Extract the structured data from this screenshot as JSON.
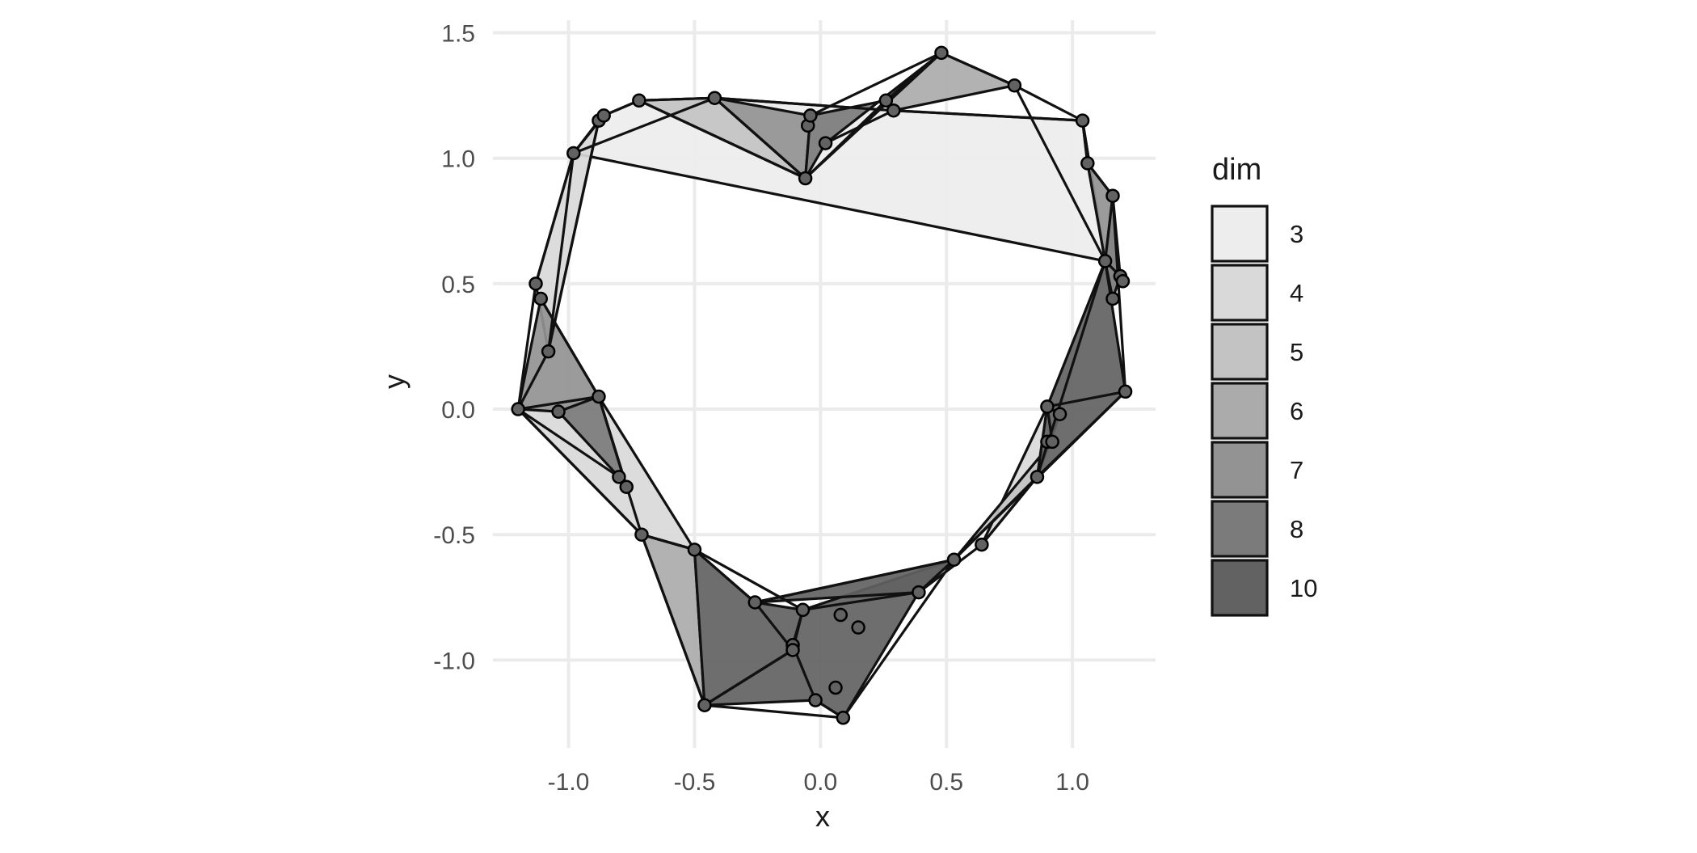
{
  "chart_data": {
    "type": "scatter",
    "xlabel": "x",
    "ylabel": "y",
    "xlim": [
      -1.3,
      1.33
    ],
    "ylim": [
      -1.35,
      1.55
    ],
    "x_ticks": [
      -1.0,
      -0.5,
      0.0,
      0.5,
      1.0
    ],
    "x_tick_labels": [
      "-1.0",
      "-0.5",
      "0.0",
      "0.5",
      "1.0"
    ],
    "y_ticks": [
      -1.0,
      -0.5,
      0.0,
      0.5,
      1.0,
      1.5
    ],
    "y_tick_labels": [
      "-1.0",
      "-0.5",
      "0.0",
      "0.5",
      "1.0",
      "1.5"
    ],
    "grid": true,
    "legend": {
      "title": "dim",
      "placement": "right",
      "entries": [
        {
          "label": "3",
          "color": "#ededed"
        },
        {
          "label": "4",
          "color": "#d9d9d9"
        },
        {
          "label": "5",
          "color": "#c3c3c3"
        },
        {
          "label": "6",
          "color": "#ababab"
        },
        {
          "label": "7",
          "color": "#939393"
        },
        {
          "label": "8",
          "color": "#7b7b7b"
        },
        {
          "label": "10",
          "color": "#626262"
        }
      ]
    },
    "points": [
      {
        "x": -1.2,
        "y": 0.0
      },
      {
        "x": -1.04,
        "y": -0.01
      },
      {
        "x": -0.88,
        "y": 0.05
      },
      {
        "x": -1.13,
        "y": 0.5
      },
      {
        "x": -1.11,
        "y": 0.44
      },
      {
        "x": -1.08,
        "y": 0.23
      },
      {
        "x": -0.98,
        "y": 1.02
      },
      {
        "x": -0.88,
        "y": 1.15
      },
      {
        "x": -0.86,
        "y": 1.17
      },
      {
        "x": -0.72,
        "y": 1.23
      },
      {
        "x": -0.42,
        "y": 1.24
      },
      {
        "x": -0.06,
        "y": 0.92
      },
      {
        "x": -0.05,
        "y": 1.13
      },
      {
        "x": -0.04,
        "y": 1.17
      },
      {
        "x": 0.02,
        "y": 1.06
      },
      {
        "x": 0.26,
        "y": 1.23
      },
      {
        "x": 0.29,
        "y": 1.19
      },
      {
        "x": 0.48,
        "y": 1.42
      },
      {
        "x": 0.77,
        "y": 1.29
      },
      {
        "x": 1.04,
        "y": 1.15
      },
      {
        "x": 1.06,
        "y": 0.98
      },
      {
        "x": 1.16,
        "y": 0.85
      },
      {
        "x": 1.13,
        "y": 0.59
      },
      {
        "x": 1.19,
        "y": 0.53
      },
      {
        "x": 1.2,
        "y": 0.51
      },
      {
        "x": 1.16,
        "y": 0.44
      },
      {
        "x": 1.21,
        "y": 0.07
      },
      {
        "x": 0.9,
        "y": 0.01
      },
      {
        "x": 0.95,
        "y": -0.02
      },
      {
        "x": 0.9,
        "y": -0.13
      },
      {
        "x": 0.92,
        "y": -0.13
      },
      {
        "x": 0.86,
        "y": -0.27
      },
      {
        "x": 0.64,
        "y": -0.54
      },
      {
        "x": 0.53,
        "y": -0.6
      },
      {
        "x": 0.39,
        "y": -0.73
      },
      {
        "x": 0.08,
        "y": -0.82
      },
      {
        "x": 0.15,
        "y": -0.87
      },
      {
        "x": -0.07,
        "y": -0.8
      },
      {
        "x": -0.11,
        "y": -0.94
      },
      {
        "x": -0.11,
        "y": -0.96
      },
      {
        "x": 0.06,
        "y": -1.11
      },
      {
        "x": -0.02,
        "y": -1.16
      },
      {
        "x": 0.09,
        "y": -1.23
      },
      {
        "x": -0.46,
        "y": -1.18
      },
      {
        "x": -0.26,
        "y": -0.77
      },
      {
        "x": -0.5,
        "y": -0.56
      },
      {
        "x": -0.71,
        "y": -0.5
      },
      {
        "x": -0.77,
        "y": -0.31
      },
      {
        "x": -0.8,
        "y": -0.27
      }
    ],
    "polygons": [
      {
        "dim": "3",
        "vertices": [
          [
            -0.98,
            1.02
          ],
          [
            -0.86,
            1.17
          ],
          [
            -0.72,
            1.23
          ],
          [
            -0.42,
            1.24
          ],
          [
            0.29,
            1.19
          ],
          [
            1.04,
            1.15
          ],
          [
            1.13,
            0.59
          ]
        ]
      },
      {
        "dim": "4",
        "vertices": [
          [
            -1.13,
            0.5
          ],
          [
            -0.98,
            1.02
          ],
          [
            -0.88,
            1.15
          ],
          [
            -1.08,
            0.23
          ]
        ]
      },
      {
        "dim": "4",
        "vertices": [
          [
            -1.2,
            0.0
          ],
          [
            -0.71,
            -0.5
          ],
          [
            -0.5,
            -0.56
          ],
          [
            -0.88,
            0.05
          ]
        ]
      },
      {
        "dim": "4",
        "vertices": [
          [
            0.64,
            -0.54
          ],
          [
            0.86,
            -0.27
          ],
          [
            0.95,
            -0.02
          ],
          [
            0.9,
            0.01
          ]
        ]
      },
      {
        "dim": "5",
        "vertices": [
          [
            -0.72,
            1.23
          ],
          [
            -0.06,
            0.92
          ],
          [
            -0.42,
            1.24
          ]
        ]
      },
      {
        "dim": "5",
        "vertices": [
          [
            1.04,
            1.15
          ],
          [
            1.06,
            0.98
          ],
          [
            1.13,
            0.59
          ]
        ]
      },
      {
        "dim": "5",
        "vertices": [
          [
            0.53,
            -0.6
          ],
          [
            0.86,
            -0.27
          ],
          [
            0.9,
            0.01
          ],
          [
            0.92,
            -0.13
          ]
        ]
      },
      {
        "dim": "6",
        "vertices": [
          [
            0.26,
            1.23
          ],
          [
            0.48,
            1.42
          ],
          [
            0.77,
            1.29
          ],
          [
            0.29,
            1.19
          ]
        ]
      },
      {
        "dim": "6",
        "vertices": [
          [
            -0.71,
            -0.5
          ],
          [
            -0.46,
            -1.18
          ],
          [
            -0.5,
            -0.56
          ]
        ]
      },
      {
        "dim": "7",
        "vertices": [
          [
            -0.42,
            1.24
          ],
          [
            -0.06,
            0.92
          ],
          [
            -0.04,
            1.17
          ]
        ]
      },
      {
        "dim": "7",
        "vertices": [
          [
            -1.2,
            0.0
          ],
          [
            -1.11,
            0.44
          ],
          [
            -0.88,
            0.05
          ],
          [
            -1.04,
            -0.01
          ]
        ]
      },
      {
        "dim": "7",
        "vertices": [
          [
            1.06,
            0.98
          ],
          [
            1.16,
            0.85
          ],
          [
            1.13,
            0.59
          ]
        ]
      },
      {
        "dim": "8",
        "vertices": [
          [
            -0.04,
            1.17
          ],
          [
            0.26,
            1.23
          ],
          [
            0.48,
            1.42
          ],
          [
            0.02,
            1.06
          ],
          [
            -0.06,
            0.92
          ]
        ]
      },
      {
        "dim": "8",
        "vertices": [
          [
            -1.04,
            -0.01
          ],
          [
            -0.88,
            0.05
          ],
          [
            -0.77,
            -0.31
          ],
          [
            -0.8,
            -0.27
          ]
        ]
      },
      {
        "dim": "8",
        "vertices": [
          [
            1.16,
            0.85
          ],
          [
            1.19,
            0.53
          ],
          [
            1.16,
            0.44
          ],
          [
            1.13,
            0.59
          ]
        ]
      },
      {
        "dim": "10",
        "vertices": [
          [
            1.13,
            0.59
          ],
          [
            1.21,
            0.07
          ],
          [
            0.86,
            -0.27
          ],
          [
            0.9,
            0.01
          ]
        ]
      },
      {
        "dim": "10",
        "vertices": [
          [
            -0.46,
            -1.18
          ],
          [
            -0.5,
            -0.56
          ],
          [
            -0.26,
            -0.77
          ],
          [
            -0.07,
            -0.8
          ],
          [
            -0.11,
            -0.96
          ]
        ]
      },
      {
        "dim": "10",
        "vertices": [
          [
            -0.46,
            -1.18
          ],
          [
            -0.02,
            -1.16
          ],
          [
            0.09,
            -1.23
          ],
          [
            0.39,
            -0.73
          ],
          [
            0.53,
            -0.6
          ],
          [
            -0.07,
            -0.8
          ],
          [
            -0.11,
            -0.96
          ]
        ]
      },
      {
        "dim": "10",
        "vertices": [
          [
            -0.26,
            -0.77
          ],
          [
            0.39,
            -0.73
          ],
          [
            0.53,
            -0.6
          ]
        ]
      }
    ],
    "edges": [
      [
        [
          -1.2,
          0.0
        ],
        [
          -1.13,
          0.5
        ]
      ],
      [
        [
          -1.2,
          0.0
        ],
        [
          -1.08,
          0.23
        ]
      ],
      [
        [
          -1.2,
          0.0
        ],
        [
          -0.71,
          -0.5
        ]
      ],
      [
        [
          -1.2,
          0.0
        ],
        [
          -0.88,
          0.05
        ]
      ],
      [
        [
          -1.13,
          0.5
        ],
        [
          -0.98,
          1.02
        ]
      ],
      [
        [
          -1.11,
          0.44
        ],
        [
          -0.88,
          0.05
        ]
      ],
      [
        [
          -1.08,
          0.23
        ],
        [
          -0.98,
          1.02
        ]
      ],
      [
        [
          -0.98,
          1.02
        ],
        [
          -0.86,
          1.17
        ]
      ],
      [
        [
          -0.88,
          1.15
        ],
        [
          -1.08,
          0.23
        ]
      ],
      [
        [
          -0.86,
          1.17
        ],
        [
          -0.72,
          1.23
        ]
      ],
      [
        [
          -0.72,
          1.23
        ],
        [
          -0.42,
          1.24
        ]
      ],
      [
        [
          -0.72,
          1.23
        ],
        [
          -0.06,
          0.92
        ]
      ],
      [
        [
          -0.98,
          1.02
        ],
        [
          -0.42,
          1.24
        ]
      ],
      [
        [
          -0.42,
          1.24
        ],
        [
          -0.06,
          0.92
        ]
      ],
      [
        [
          -0.42,
          1.24
        ],
        [
          0.29,
          1.19
        ]
      ],
      [
        [
          -0.06,
          0.92
        ],
        [
          0.26,
          1.23
        ]
      ],
      [
        [
          -0.06,
          0.92
        ],
        [
          0.48,
          1.42
        ]
      ],
      [
        [
          -0.04,
          1.17
        ],
        [
          0.48,
          1.42
        ]
      ],
      [
        [
          0.02,
          1.06
        ],
        [
          0.29,
          1.19
        ]
      ],
      [
        [
          0.26,
          1.23
        ],
        [
          0.48,
          1.42
        ]
      ],
      [
        [
          0.48,
          1.42
        ],
        [
          0.77,
          1.29
        ]
      ],
      [
        [
          0.29,
          1.19
        ],
        [
          1.04,
          1.15
        ]
      ],
      [
        [
          0.77,
          1.29
        ],
        [
          1.04,
          1.15
        ]
      ],
      [
        [
          0.77,
          1.29
        ],
        [
          1.13,
          0.59
        ]
      ],
      [
        [
          1.04,
          1.15
        ],
        [
          1.06,
          0.98
        ]
      ],
      [
        [
          1.06,
          0.98
        ],
        [
          1.16,
          0.85
        ]
      ],
      [
        [
          1.16,
          0.85
        ],
        [
          1.21,
          0.07
        ]
      ],
      [
        [
          1.13,
          0.59
        ],
        [
          1.19,
          0.53
        ]
      ],
      [
        [
          1.13,
          0.59
        ],
        [
          0.86,
          -0.27
        ]
      ],
      [
        [
          1.21,
          0.07
        ],
        [
          0.9,
          0.01
        ]
      ],
      [
        [
          1.21,
          0.07
        ],
        [
          0.53,
          -0.6
        ]
      ],
      [
        [
          0.9,
          0.01
        ],
        [
          0.95,
          -0.02
        ]
      ],
      [
        [
          0.9,
          0.01
        ],
        [
          0.92,
          -0.13
        ]
      ],
      [
        [
          0.86,
          -0.27
        ],
        [
          0.64,
          -0.54
        ]
      ],
      [
        [
          0.64,
          -0.54
        ],
        [
          0.39,
          -0.73
        ]
      ],
      [
        [
          0.53,
          -0.6
        ],
        [
          0.09,
          -1.23
        ]
      ],
      [
        [
          0.53,
          -0.6
        ],
        [
          -0.26,
          -0.77
        ]
      ],
      [
        [
          0.39,
          -0.73
        ],
        [
          -0.07,
          -0.8
        ]
      ],
      [
        [
          -0.46,
          -1.18
        ],
        [
          0.09,
          -1.23
        ]
      ],
      [
        [
          -0.46,
          -1.18
        ],
        [
          -0.11,
          -0.96
        ]
      ],
      [
        [
          -0.46,
          -1.18
        ],
        [
          -0.71,
          -0.5
        ]
      ],
      [
        [
          -0.71,
          -0.5
        ],
        [
          -0.5,
          -0.56
        ]
      ],
      [
        [
          -0.5,
          -0.56
        ],
        [
          -0.07,
          -0.8
        ]
      ],
      [
        [
          -0.5,
          -0.56
        ],
        [
          -0.26,
          -0.77
        ]
      ],
      [
        [
          -0.71,
          -0.5
        ],
        [
          -0.88,
          0.05
        ]
      ],
      [
        [
          -0.88,
          0.05
        ],
        [
          -0.77,
          -0.31
        ]
      ],
      [
        [
          -1.2,
          0.0
        ],
        [
          -0.8,
          -0.27
        ]
      ],
      [
        [
          -0.11,
          -0.94
        ],
        [
          -0.07,
          -0.8
        ]
      ],
      [
        [
          -0.11,
          -0.94
        ],
        [
          -0.02,
          -1.16
        ]
      ],
      [
        [
          -0.02,
          -1.16
        ],
        [
          0.09,
          -1.23
        ]
      ],
      [
        [
          -0.26,
          -0.77
        ],
        [
          -0.11,
          -0.96
        ]
      ]
    ]
  }
}
